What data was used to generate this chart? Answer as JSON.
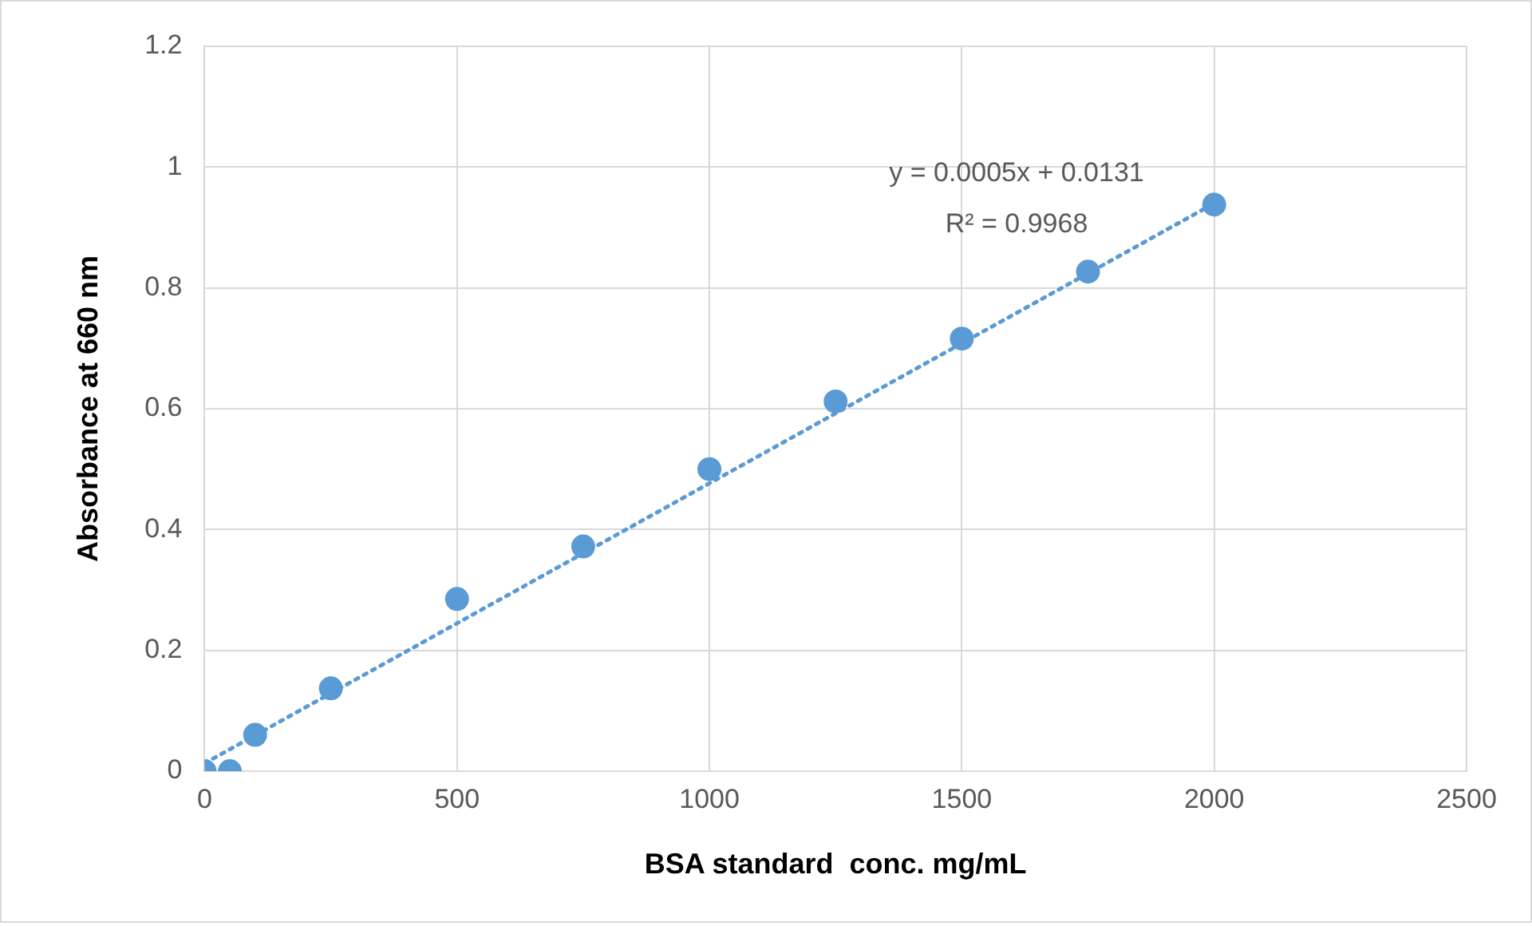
{
  "chart_data": {
    "type": "scatter",
    "xlabel": "BSA standard  conc. mg/mL",
    "ylabel": "Absorbance at 660 nm",
    "x": [
      0,
      50,
      100,
      250,
      500,
      750,
      1000,
      1250,
      1500,
      1750,
      2000
    ],
    "series": [
      {
        "color": "#5b9bd5",
        "values": [
          0,
          0,
          0.06,
          0.137,
          0.285,
          0.372,
          0.5,
          0.612,
          0.716,
          0.827,
          0.938
        ]
      },
      {
        "type": "line",
        "color": "#5b9bd5",
        "x": [
          0,
          2000
        ],
        "values": [
          0.013,
          0.94
        ],
        "line_style": "dotted",
        "marker": "none"
      }
    ],
    "xlim": [
      0,
      2500
    ],
    "xticks": [
      0,
      500,
      1000,
      1500,
      2000,
      2500
    ],
    "ylim": [
      0,
      1.2
    ],
    "yticks": [
      0,
      0.2,
      0.4,
      0.6,
      0.8,
      1,
      1.2
    ],
    "grid": true,
    "marker": "circle",
    "annotations": [
      "y = 0.0005x + 0.0131",
      "R² = 0.9968"
    ]
  }
}
